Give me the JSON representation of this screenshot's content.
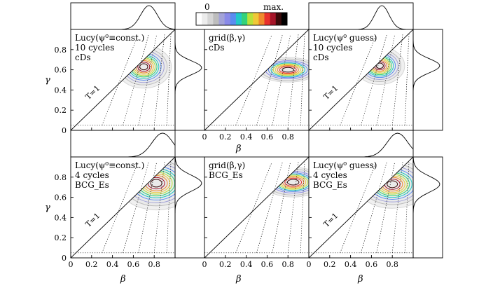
{
  "colorbar": {
    "min_label": "0",
    "max_label": "max.",
    "colors": [
      "#ffffff",
      "#ececec",
      "#d6d6d6",
      "#bdbdbd",
      "#a3a3d8",
      "#8a8ae8",
      "#5a8cf0",
      "#22c8c8",
      "#33d27a",
      "#b8e23a",
      "#f0c838",
      "#f08a2c",
      "#e8302c",
      "#a51428",
      "#3a0a0a",
      "#000000"
    ]
  },
  "panels": [
    {
      "id": "top-left",
      "lines": [
        "Lucy(ψ⁰≡const.)",
        "10 cycles",
        "cDs"
      ],
      "method": "lucy",
      "sample": "cDs",
      "peak": [
        0.7,
        0.63
      ],
      "spread": [
        0.1,
        0.08
      ],
      "t1_label": "T=1"
    },
    {
      "id": "top-center",
      "lines": [
        "grid(β,γ)",
        "cDs"
      ],
      "method": "grid",
      "sample": "cDs",
      "peak": [
        0.8,
        0.6
      ],
      "spread": [
        0.12,
        0.05
      ],
      "t1_label": ""
    },
    {
      "id": "top-right",
      "lines": [
        "Lucy(ψ⁰ guess)",
        "10 cycles",
        "cDs"
      ],
      "method": "lucy",
      "sample": "cDs",
      "peak": [
        0.68,
        0.64
      ],
      "spread": [
        0.09,
        0.07
      ],
      "t1_label": "T=1"
    },
    {
      "id": "bot-left",
      "lines": [
        "Lucy(ψ⁰≡const.)",
        "4 cycles",
        "BCG_Es"
      ],
      "method": "lucy",
      "sample": "BCG_Es",
      "peak": [
        0.82,
        0.74
      ],
      "spread": [
        0.14,
        0.1
      ],
      "t1_label": "T=1"
    },
    {
      "id": "bot-center",
      "lines": [
        "grid(β,γ)",
        "BCG_Es"
      ],
      "method": "grid",
      "sample": "BCG_Es",
      "peak": [
        0.85,
        0.75
      ],
      "spread": [
        0.12,
        0.06
      ],
      "t1_label": ""
    },
    {
      "id": "bot-right",
      "lines": [
        "Lucy(ψ⁰ guess)",
        "4 cycles",
        "BCG_Es"
      ],
      "method": "lucy",
      "sample": "BCG_Es",
      "peak": [
        0.8,
        0.73
      ],
      "spread": [
        0.13,
        0.09
      ],
      "t1_label": "T=1"
    }
  ],
  "axes": {
    "xlabel": "β",
    "ylabel": "γ",
    "xlim": [
      0,
      1
    ],
    "ylim": [
      0,
      1
    ],
    "x_ticks": [
      "0",
      "0.2",
      "0.4",
      "0.6",
      "0.8"
    ],
    "x_tick_values": [
      0,
      0.2,
      0.4,
      0.6,
      0.8
    ],
    "y_ticks": [
      "0",
      "0.2",
      "0.4",
      "0.6",
      "0.8"
    ],
    "y_tick_values": [
      0,
      0.2,
      0.4,
      0.6,
      0.8
    ]
  },
  "marginals": {
    "top_beta_peak": [
      0.75,
      0.7,
      0.75
    ],
    "side_gamma_peak": [
      0.62,
      0.64
    ],
    "bottom_side_gamma_peak": [
      0.74,
      0.73
    ]
  }
}
